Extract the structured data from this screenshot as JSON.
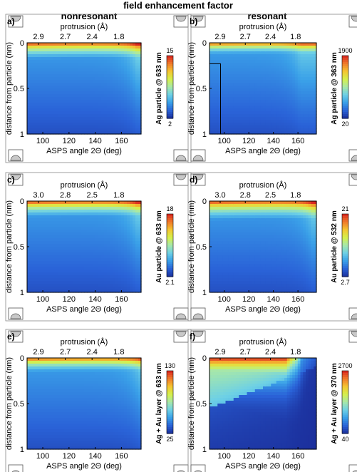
{
  "figure": {
    "title": "field enhancement factor",
    "columns": [
      "nonresonant",
      "resonant"
    ]
  },
  "colors": {
    "colormap": [
      "#1b2f9c",
      "#2a63d8",
      "#3aa0e8",
      "#6dd0e6",
      "#a8e8a8",
      "#d6f04a",
      "#f5c431",
      "#f0782a",
      "#d8231f"
    ],
    "grid": "#ffffff",
    "frame": "#000000",
    "icon_fill": "#c8c8c8"
  },
  "chart_data": [
    {
      "panel": "a)",
      "type": "heatmap",
      "xlabel": "ASPS angle 2Θ (deg)",
      "ylabel": "distance from particle (nm)",
      "x2label": "protrusion (Å)",
      "xticks": [
        100,
        120,
        140,
        160
      ],
      "xlim": [
        88,
        175
      ],
      "yticks": [
        "0",
        "0.5",
        "1"
      ],
      "ylim": [
        0,
        1
      ],
      "x2ticks": [
        "2.9",
        "2.7",
        "2.4",
        "1.8"
      ],
      "colorbar": {
        "label": "Ag particle @ 633 nm",
        "max": "15",
        "min": "2"
      },
      "field": {
        "peak": 1.0,
        "decay": 0.12,
        "edge_x": 160,
        "edge_boost": 0.55,
        "spot": null
      }
    },
    {
      "panel": "b)",
      "type": "heatmap",
      "xlabel": "ASPS angle 2Θ (deg)",
      "ylabel": "distance from particle (nm)",
      "x2label": "protrusion (Å)",
      "xticks": [
        100,
        120,
        140,
        160
      ],
      "xlim": [
        88,
        175
      ],
      "yticks": [
        "0",
        "0.5",
        "1"
      ],
      "ylim": [
        0,
        1
      ],
      "x2ticks": [
        "2.9",
        "2.7",
        "2.4",
        "1.8"
      ],
      "colorbar": {
        "label": "Ag particle @ 363 nm",
        "max": "1900",
        "min": "20"
      },
      "field": {
        "peak": 0.95,
        "decay": 0.09,
        "edge_x": 150,
        "edge_boost": 0.4,
        "spot": "b"
      },
      "inset_box": {
        "x": [
          88,
          97
        ],
        "y": [
          0.23,
          1
        ]
      }
    },
    {
      "panel": "c)",
      "type": "heatmap",
      "xlabel": "ASPS angle 2Θ (deg)",
      "ylabel": "distance from particle (nm)",
      "x2label": "protrusion (Å)",
      "xticks": [
        100,
        120,
        140,
        160
      ],
      "xlim": [
        88,
        175
      ],
      "yticks": [
        "0",
        "0.5",
        "1"
      ],
      "ylim": [
        0,
        1
      ],
      "x2ticks": [
        "3.0",
        "2.8",
        "2.5",
        "1.8"
      ],
      "colorbar": {
        "label": "Au particle @ 633 nm",
        "max": "18",
        "min": "2.1"
      },
      "field": {
        "peak": 1.0,
        "decay": 0.12,
        "edge_x": 160,
        "edge_boost": 0.5,
        "spot": null
      }
    },
    {
      "panel": "d)",
      "type": "heatmap",
      "xlabel": "ASPS angle 2Θ (deg)",
      "ylabel": "distance from particle (nm)",
      "x2label": "protrusion (Å)",
      "xticks": [
        100,
        120,
        140,
        160
      ],
      "xlim": [
        88,
        175
      ],
      "yticks": [
        "0",
        "0.5",
        "1"
      ],
      "ylim": [
        0,
        1
      ],
      "x2ticks": [
        "3.0",
        "2.8",
        "2.5",
        "1.8"
      ],
      "colorbar": {
        "label": "Au particle @ 532 nm",
        "max": "21",
        "min": "2.7"
      },
      "field": {
        "peak": 1.0,
        "decay": 0.14,
        "edge_x": 160,
        "edge_boost": 0.5,
        "spot": null
      }
    },
    {
      "panel": "e)",
      "type": "heatmap",
      "xlabel": "ASPS angle 2Θ (deg)",
      "ylabel": "distance from particle (nm)",
      "x2label": "protrusion (Å)",
      "xticks": [
        100,
        120,
        140,
        160
      ],
      "xlim": [
        88,
        175
      ],
      "yticks": [
        "0",
        "0.5",
        "1"
      ],
      "ylim": [
        0,
        1
      ],
      "x2ticks": [
        "2.9",
        "2.7",
        "2.4",
        "1.8"
      ],
      "colorbar": {
        "label": "Ag + Au  layer @ 633 nm",
        "max": "130",
        "min": "25"
      },
      "field": {
        "peak": 0.95,
        "decay": 0.11,
        "edge_x": 165,
        "edge_boost": 0.6,
        "spot": null
      }
    },
    {
      "panel": "f)",
      "type": "heatmap",
      "xlabel": "ASPS angle 2Θ (deg)",
      "ylabel": "distance from particle (nm)",
      "x2label": "protrusion (Å)",
      "xticks": [
        100,
        120,
        140,
        160
      ],
      "xlim": [
        88,
        175
      ],
      "yticks": [
        "0",
        "0.5",
        "1"
      ],
      "ylim": [
        0,
        1
      ],
      "x2ticks": [
        "2.9",
        "2.7",
        "2.4",
        "1.8"
      ],
      "colorbar": {
        "label": "Ag + Au layer @ 370 nm",
        "max": "2700",
        "min": "40"
      },
      "field": {
        "peak": 1.0,
        "decay": 0.2,
        "edge_x": 140,
        "edge_boost": 0.0,
        "spot": "f"
      }
    }
  ]
}
